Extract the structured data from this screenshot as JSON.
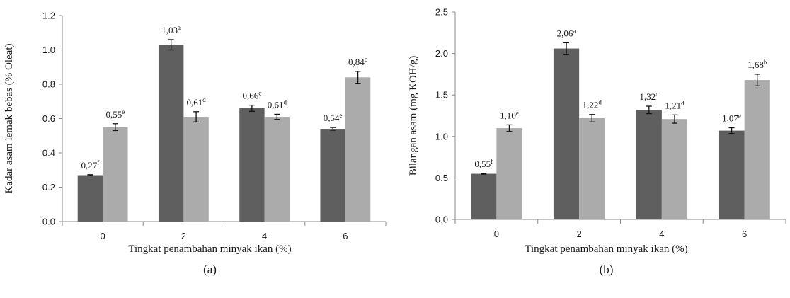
{
  "chart_data": [
    {
      "type": "bar",
      "panel_label": "(a)",
      "categories": [
        "0",
        "2",
        "4",
        "6"
      ],
      "xlabel": "Tingkat penambahan minyak ikan (%)",
      "ylabel": "Kadar asam lemak bebas (% Oleat)",
      "ylim": [
        0,
        1.2
      ],
      "yticks": [
        "0.0",
        "0.2",
        "0.4",
        "0.6",
        "0.8",
        "1.0",
        "1.2"
      ],
      "grid": false,
      "legend": "none",
      "series": [
        {
          "color": "#5f5f5f",
          "values": [
            0.27,
            1.03,
            0.66,
            0.54
          ],
          "errors": [
            0.003,
            0.03,
            0.018,
            0.008
          ],
          "labels": [
            "0,27",
            "1,03",
            "0,66",
            "0,54"
          ],
          "letters": [
            "f",
            "a",
            "c",
            "e"
          ]
        },
        {
          "color": "#ababab",
          "values": [
            0.55,
            0.61,
            0.61,
            0.84
          ],
          "errors": [
            0.02,
            0.03,
            0.015,
            0.035
          ],
          "labels": [
            "0,55",
            "0,61",
            "0,61",
            "0,84"
          ],
          "letters": [
            "e",
            "d",
            "d",
            "b"
          ]
        }
      ]
    },
    {
      "type": "bar",
      "panel_label": "(b)",
      "categories": [
        "0",
        "2",
        "4",
        "6"
      ],
      "xlabel": "Tingkat penambahan minyak ikan (%)",
      "ylabel": "Bilangan asam (mg KOH/g)",
      "ylim": [
        0,
        2.5
      ],
      "yticks": [
        "0.0",
        "0.5",
        "1.0",
        "1.5",
        "2.0",
        "2.5"
      ],
      "grid": false,
      "legend": "none",
      "series": [
        {
          "color": "#5f5f5f",
          "values": [
            0.55,
            2.06,
            1.32,
            1.07
          ],
          "errors": [
            0.005,
            0.07,
            0.045,
            0.035
          ],
          "labels": [
            "0,55",
            "2,06",
            "1,32",
            "1,07"
          ],
          "letters": [
            "f",
            "a",
            "c",
            "e"
          ]
        },
        {
          "color": "#ababab",
          "values": [
            1.1,
            1.22,
            1.21,
            1.68
          ],
          "errors": [
            0.04,
            0.045,
            0.05,
            0.07
          ],
          "labels": [
            "1,10",
            "1,22",
            "1,21",
            "1,68"
          ],
          "letters": [
            "e",
            "d",
            "d",
            "b"
          ]
        }
      ]
    }
  ]
}
